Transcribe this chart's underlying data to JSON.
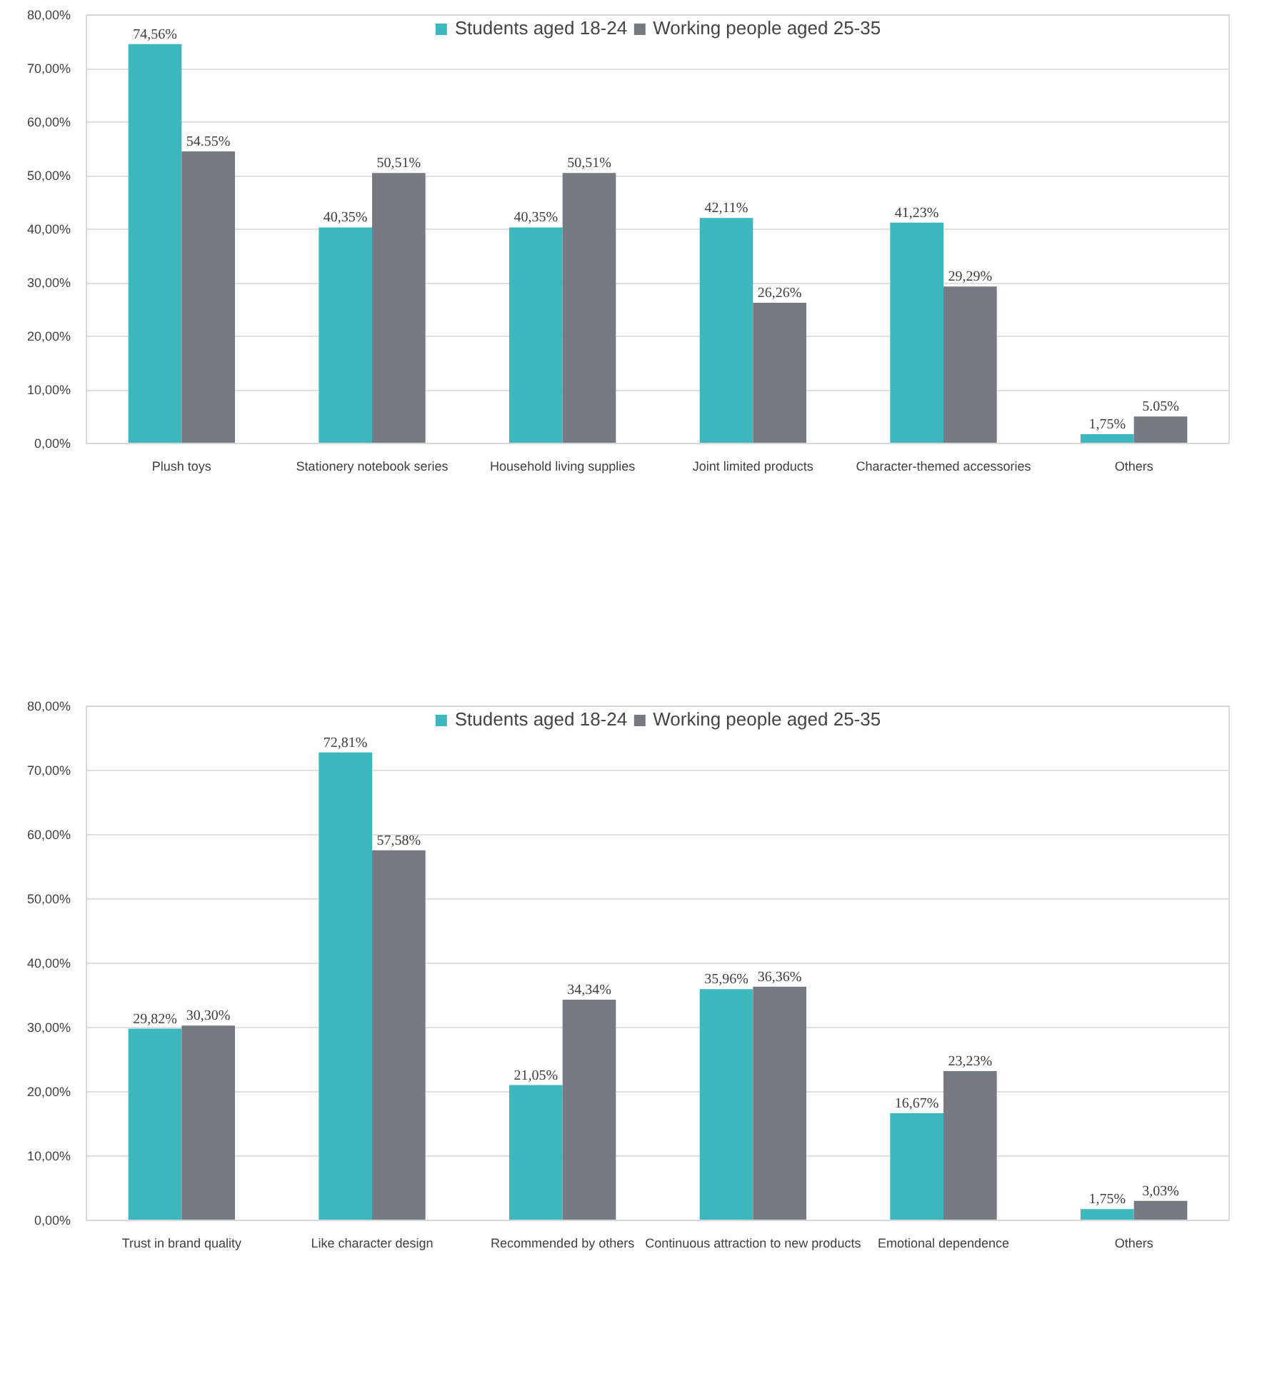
{
  "chart_data": [
    {
      "type": "bar",
      "categories": [
        "Plush toys",
        "Stationery notebook series",
        "Household living supplies",
        "Joint limited products",
        "Character-themed accessories",
        "Others"
      ],
      "series": [
        {
          "name": "Students aged 18-24",
          "color": "#3cb7bd",
          "values": [
            74.56,
            40.35,
            40.35,
            42.11,
            41.23,
            1.75
          ],
          "value_labels": [
            "74,56%",
            "40,35%",
            "40,35%",
            "42,11%",
            "41,23%",
            "1,75%"
          ]
        },
        {
          "name": "Working people aged 25-35",
          "color": "#787a83",
          "values": [
            54.55,
            50.51,
            50.51,
            26.26,
            29.29,
            5.05
          ],
          "value_labels": [
            "54.55%",
            "50,51%",
            "50,51%",
            "26,26%",
            "29,29%",
            "5.05%"
          ]
        }
      ],
      "ylim": [
        0,
        80
      ],
      "yticks": [
        {
          "value": 0,
          "label": "0,00%"
        },
        {
          "value": 10,
          "label": "10,00%"
        },
        {
          "value": 20,
          "label": "20,00%"
        },
        {
          "value": 30,
          "label": "30,00%"
        },
        {
          "value": 40,
          "label": "40,00%"
        },
        {
          "value": 50,
          "label": "50,00%"
        },
        {
          "value": 60,
          "label": "60,00%"
        },
        {
          "value": 70,
          "label": "70,00%"
        },
        {
          "value": 80,
          "label": "80,00%"
        }
      ],
      "grid": "y",
      "legend": "top"
    },
    {
      "type": "bar",
      "categories": [
        "Trust in brand quality",
        "Like character design",
        "Recommended by others",
        "Continuous attraction to new products",
        "Emotional dependence",
        "Others"
      ],
      "series": [
        {
          "name": "Students aged 18-24",
          "color": "#3cb7bd",
          "values": [
            29.82,
            72.81,
            21.05,
            35.96,
            16.67,
            1.75
          ],
          "value_labels": [
            "29,82%",
            "72,81%",
            "21,05%",
            "35,96%",
            "16,67%",
            "1,75%"
          ]
        },
        {
          "name": "Working people aged 25-35",
          "color": "#787a83",
          "values": [
            30.3,
            57.58,
            34.34,
            36.36,
            23.23,
            3.03
          ],
          "value_labels": [
            "30,30%",
            "57,58%",
            "34,34%",
            "36,36%",
            "23,23%",
            "3,03%"
          ]
        }
      ],
      "ylim": [
        0,
        80
      ],
      "yticks": [
        {
          "value": 0,
          "label": "0,00%"
        },
        {
          "value": 10,
          "label": "10,00%"
        },
        {
          "value": 20,
          "label": "20,00%"
        },
        {
          "value": 30,
          "label": "30,00%"
        },
        {
          "value": 40,
          "label": "40,00%"
        },
        {
          "value": 50,
          "label": "50,00%"
        },
        {
          "value": 60,
          "label": "60,00%"
        },
        {
          "value": 70,
          "label": "70,00%"
        },
        {
          "value": 80,
          "label": "80,00%"
        }
      ],
      "grid": "y",
      "legend": "top"
    }
  ]
}
